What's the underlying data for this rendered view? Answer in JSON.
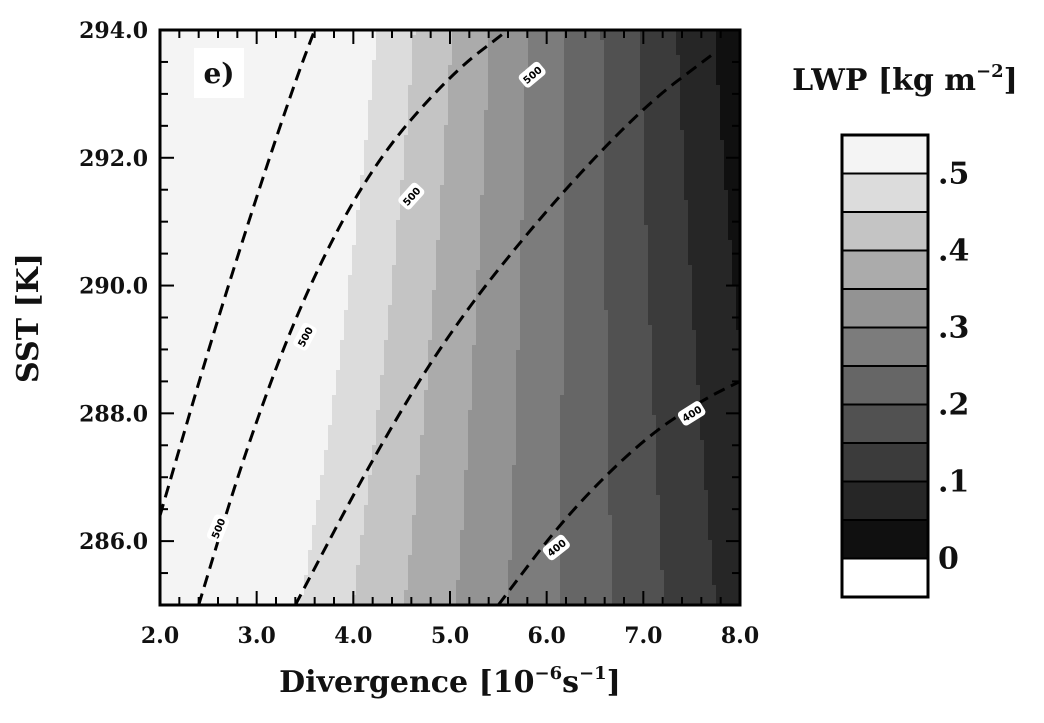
{
  "chart_data": {
    "type": "heatmap",
    "panel_label": "e)",
    "xlabel": "Divergence [10",
    "xlabel_sup1": "−6",
    "xlabel_mid": "s",
    "xlabel_sup2": "−1",
    "xlabel_end": "]",
    "ylabel": "SST [K]",
    "xlim": [
      2.0,
      8.0
    ],
    "ylim": [
      285.0,
      294.0
    ],
    "x_ticks": [
      2.0,
      3.0,
      4.0,
      5.0,
      6.0,
      7.0,
      8.0
    ],
    "x_tick_labels": [
      "2.0",
      "3.0",
      "4.0",
      "5.0",
      "6.0",
      "7.0",
      "8.0"
    ],
    "y_ticks": [
      286.0,
      288.0,
      290.0,
      292.0,
      294.0
    ],
    "y_tick_labels": [
      "286.0",
      "288.0",
      "290.0",
      "292.0",
      "294.0"
    ],
    "colorbar": {
      "title": "LWP [kg m",
      "title_sup": "−2",
      "title_end": "]",
      "levels": [
        -0.05,
        0.0,
        0.05,
        0.1,
        0.15,
        0.2,
        0.25,
        0.3,
        0.35,
        0.4,
        0.45,
        0.5,
        0.55
      ],
      "colors": [
        "#ffffff",
        "#101010",
        "#262626",
        "#3b3b3b",
        "#515151",
        "#666666",
        "#7c7c7c",
        "#939393",
        "#ababab",
        "#c4c4c4",
        "#dcdcdc",
        "#f4f4f4"
      ],
      "tick_values": [
        0,
        0.1,
        0.2,
        0.3,
        0.4,
        0.5
      ],
      "tick_labels": [
        "0",
        ".1",
        ".2",
        ".3",
        ".4",
        ".5"
      ]
    },
    "contours": [
      {
        "label": "500",
        "style": "dashed",
        "points": [
          [
            2.0,
            286.4
          ],
          [
            2.5,
            289.0
          ],
          [
            3.0,
            291.4
          ],
          [
            3.4,
            293.2
          ],
          [
            3.6,
            294.0
          ]
        ]
      },
      {
        "label": "500",
        "style": "dashed",
        "points": [
          [
            2.4,
            285.0
          ],
          [
            2.9,
            287.5
          ],
          [
            3.5,
            289.9
          ],
          [
            4.2,
            291.9
          ],
          [
            5.0,
            293.3
          ],
          [
            5.6,
            294.0
          ]
        ]
      },
      {
        "label": "500",
        "style": "dashed",
        "points": [
          [
            3.4,
            285.0
          ],
          [
            4.2,
            287.3
          ],
          [
            5.0,
            289.3
          ],
          [
            6.0,
            291.2
          ],
          [
            7.0,
            292.8
          ],
          [
            7.7,
            293.6
          ]
        ]
      },
      {
        "label": "400",
        "style": "dashed",
        "points": [
          [
            5.5,
            285.0
          ],
          [
            6.2,
            286.4
          ],
          [
            7.0,
            287.6
          ],
          [
            7.6,
            288.2
          ],
          [
            8.0,
            288.5
          ]
        ]
      }
    ],
    "contour_labels": [
      {
        "text": "500",
        "x": 2.6,
        "y": 286.2,
        "angle": -68
      },
      {
        "text": "500",
        "x": 3.5,
        "y": 289.2,
        "angle": -62
      },
      {
        "text": "500",
        "x": 4.6,
        "y": 291.4,
        "angle": -48
      },
      {
        "text": "500",
        "x": 5.85,
        "y": 293.3,
        "angle": -40
      },
      {
        "text": "400",
        "x": 6.1,
        "y": 285.9,
        "angle": -38
      },
      {
        "text": "400",
        "x": 7.5,
        "y": 288.0,
        "angle": -32
      }
    ]
  }
}
